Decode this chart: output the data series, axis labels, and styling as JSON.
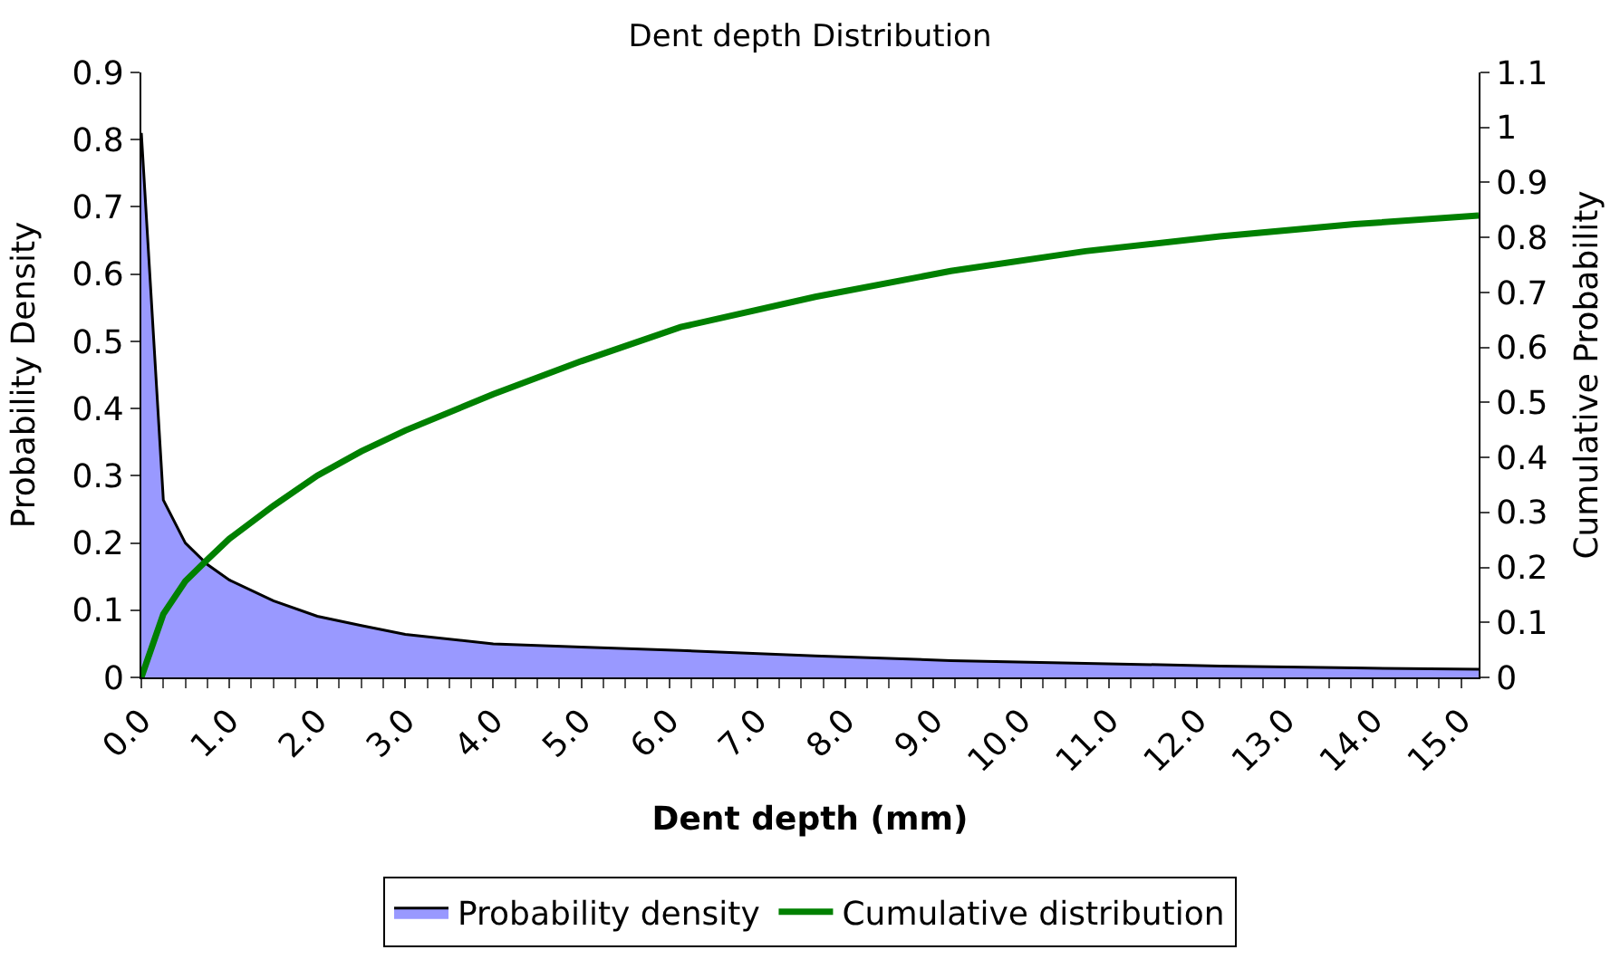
{
  "chart_data": {
    "type": "area",
    "title": "Dent depth Distribution",
    "xlabel": "Dent depth (mm)",
    "ylabel": "Probability Density",
    "y2label": "Cumulative Probability",
    "series": [
      {
        "name": "Probability density",
        "color": "#9999ff",
        "x": [
          0,
          0.25,
          0.5,
          0.75,
          1,
          1.5,
          2,
          2.5,
          3,
          4,
          5,
          6.13,
          7.66,
          9.2,
          10.73,
          12.26,
          13.79,
          15.2
        ],
        "values": [
          0.81,
          0.264,
          0.2,
          0.168,
          0.145,
          0.114,
          0.091,
          0.077,
          0.064,
          0.05,
          0.045,
          0.04,
          0.032,
          0.025,
          0.021,
          0.017,
          0.014,
          0.012
        ]
      },
      {
        "name": "Cumulative distribution",
        "type": "line",
        "axis": "y2",
        "color": "#008000",
        "x": [
          0,
          0.25,
          0.5,
          0.75,
          1,
          1.5,
          2,
          2.5,
          3,
          4,
          5,
          6.13,
          7.66,
          9.2,
          10.73,
          12.26,
          13.79,
          15.2
        ],
        "values": [
          0,
          0.115,
          0.175,
          0.214,
          0.252,
          0.312,
          0.367,
          0.411,
          0.449,
          0.515,
          0.575,
          0.637,
          0.692,
          0.739,
          0.775,
          0.802,
          0.824,
          0.84
        ]
      }
    ],
    "xlim": [
      0,
      15.2
    ],
    "xticks": [
      {
        "value": 0,
        "label": "0.0"
      },
      {
        "value": 1,
        "label": "1.0"
      },
      {
        "value": 2,
        "label": "2.0"
      },
      {
        "value": 3,
        "label": "3.0"
      },
      {
        "value": 4,
        "label": "4.0"
      },
      {
        "value": 5,
        "label": "5.0"
      },
      {
        "value": 6,
        "label": "6.0"
      },
      {
        "value": 7,
        "label": "7.0"
      },
      {
        "value": 8,
        "label": "8.0"
      },
      {
        "value": 9,
        "label": "9.0"
      },
      {
        "value": 10,
        "label": "10.0"
      },
      {
        "value": 11,
        "label": "11.0"
      },
      {
        "value": 12,
        "label": "12.0"
      },
      {
        "value": 13,
        "label": "13.0"
      },
      {
        "value": 14,
        "label": "14.0"
      },
      {
        "value": 15,
        "label": "15.0"
      }
    ],
    "ylim": [
      0,
      0.9
    ],
    "yticks": [
      0,
      0.1,
      0.2,
      0.3,
      0.4,
      0.5,
      0.6,
      0.7,
      0.8,
      0.9
    ],
    "y2lim": [
      0,
      1.1
    ],
    "y2ticks": [
      0,
      0.1,
      0.2,
      0.3,
      0.4,
      0.5,
      0.6,
      0.7,
      0.8,
      0.9,
      1,
      1.1
    ],
    "legend": "bottom"
  }
}
